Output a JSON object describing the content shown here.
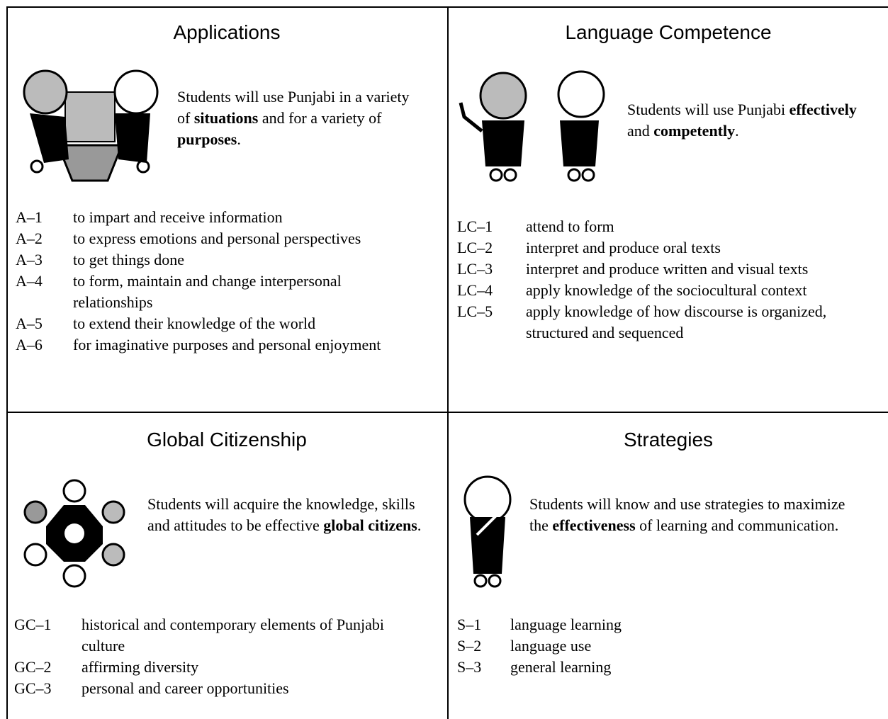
{
  "quadrants": [
    {
      "title": "Applications",
      "description": [
        {
          "text": "Students will use Punjabi in a variety of "
        },
        {
          "text": "situations",
          "bold": true
        },
        {
          "text": " and for a variety of "
        },
        {
          "text": "purposes",
          "bold": true
        },
        {
          "text": "."
        }
      ],
      "items": [
        {
          "code": "A–1",
          "text": "to impart and receive information"
        },
        {
          "code": "A–2",
          "text": "to express emotions and personal perspectives"
        },
        {
          "code": "A–3",
          "text": "to get things done"
        },
        {
          "code": "A–4",
          "text": "to form, maintain and change interpersonal relationships"
        },
        {
          "code": "A–5",
          "text": "to extend their knowledge of the world"
        },
        {
          "code": "A–6",
          "text": "for imaginative purposes and personal enjoyment"
        }
      ]
    },
    {
      "title": "Language Competence",
      "description": [
        {
          "text": "Students will use Punjabi "
        },
        {
          "text": "effectively",
          "bold": true
        },
        {
          "text": " and "
        },
        {
          "text": "competently",
          "bold": true
        },
        {
          "text": "."
        }
      ],
      "items": [
        {
          "code": "LC–1",
          "text": "attend to form"
        },
        {
          "code": "LC–2",
          "text": "interpret and produce oral texts"
        },
        {
          "code": "LC–3",
          "text": "interpret and produce written and visual texts"
        },
        {
          "code": "LC–4",
          "text": "apply knowledge of the sociocultural context"
        },
        {
          "code": "LC–5",
          "text": "apply knowledge of how discourse is organized, structured and sequenced"
        }
      ]
    },
    {
      "title": "Global Citizenship",
      "description": [
        {
          "text": "Students will acquire the knowledge, skills and attitudes to be effective "
        },
        {
          "text": "global citizens",
          "bold": true
        },
        {
          "text": "."
        }
      ],
      "items": [
        {
          "code": "GC–1",
          "text": "historical and contemporary elements of Punjabi culture"
        },
        {
          "code": "GC–2",
          "text": "affirming diversity"
        },
        {
          "code": "GC–3",
          "text": "personal and career opportunities"
        }
      ]
    },
    {
      "title": "Strategies",
      "description": [
        {
          "text": "Students will know and use strategies to maximize the "
        },
        {
          "text": "effectiveness",
          "bold": true
        },
        {
          "text": " of learning and communication."
        }
      ],
      "items": [
        {
          "code": "S–1",
          "text": "language learning"
        },
        {
          "code": "S–2",
          "text": "language use"
        },
        {
          "code": "S–3",
          "text": "general learning"
        }
      ]
    }
  ]
}
